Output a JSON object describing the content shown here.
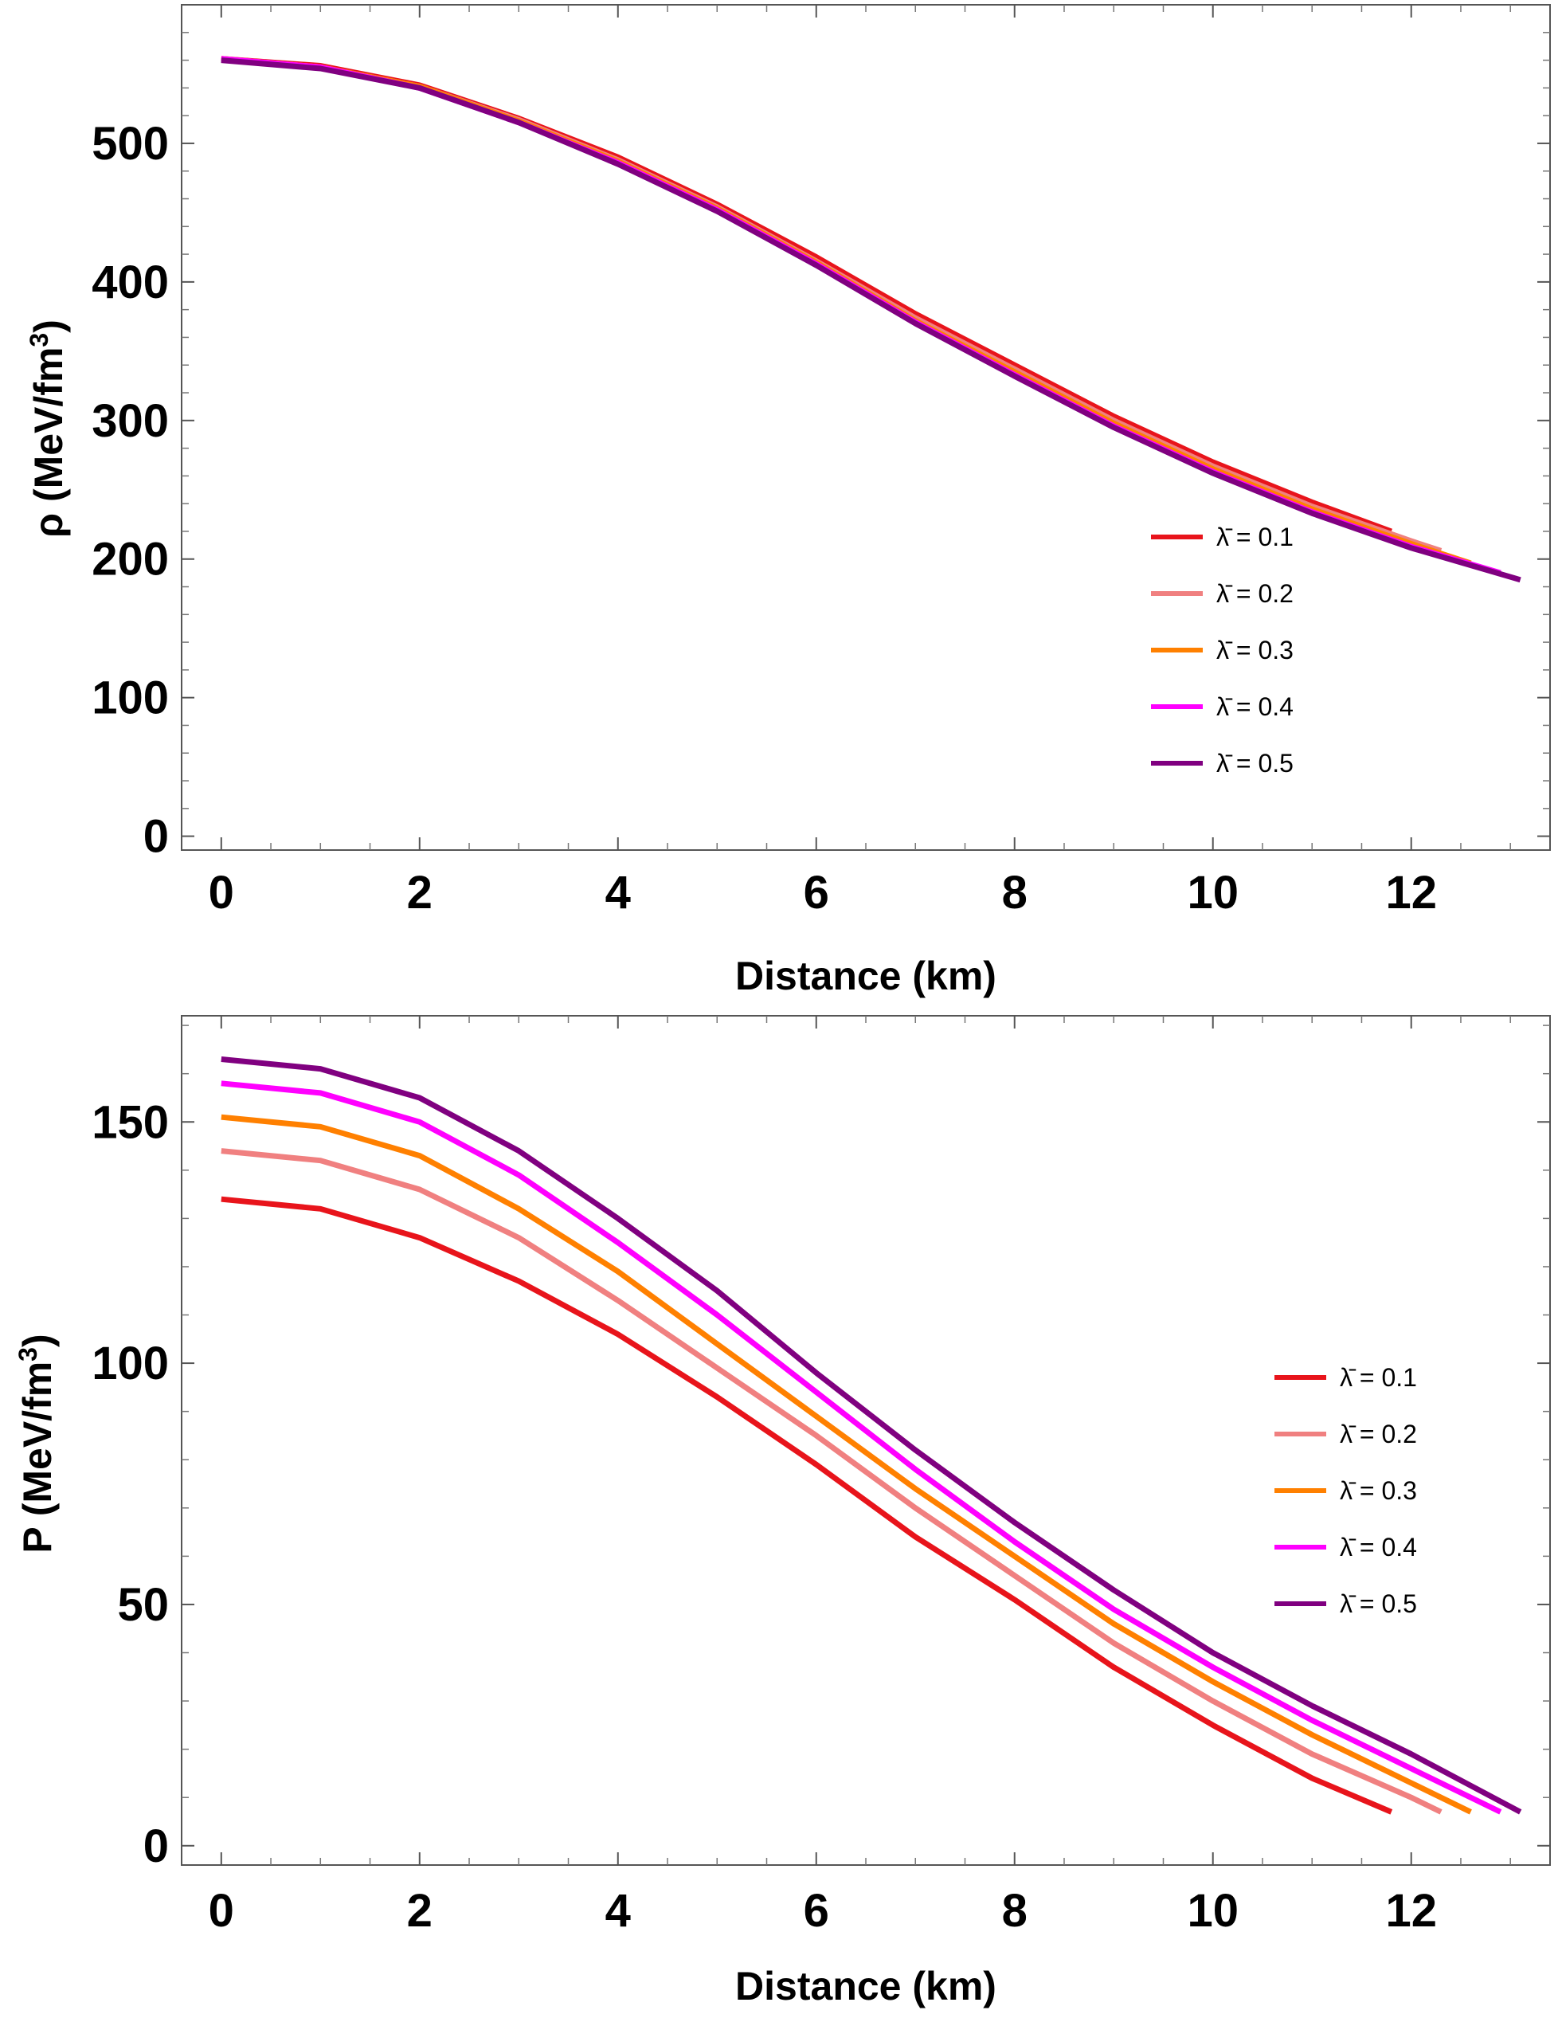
{
  "chart_data": [
    {
      "type": "line",
      "id": "density",
      "xlabel": "Distance (km)",
      "ylabel": "ρ (MeV/fm",
      "ylabel_sup": "3",
      "ylabel_tail": ")",
      "xlim": [
        -0.4,
        13.4
      ],
      "ylim": [
        -10,
        600
      ],
      "xticks": [
        0,
        2,
        4,
        6,
        8,
        10,
        12
      ],
      "yticks": [
        0,
        100,
        200,
        300,
        400,
        500
      ],
      "legend_position": "right",
      "series": [
        {
          "name": "λ̄ = 0.1",
          "color": "#e8141b",
          "x": [
            0,
            1,
            2,
            3,
            4,
            5,
            6,
            7,
            8,
            9,
            10,
            11,
            11.8
          ],
          "y": [
            561,
            556,
            542,
            518,
            490,
            456,
            418,
            377,
            340,
            303,
            270,
            241,
            220
          ]
        },
        {
          "name": "λ̄ = 0.2",
          "color": "#f08080",
          "x": [
            0,
            1,
            2,
            3,
            4,
            5,
            6,
            7,
            8,
            9,
            10,
            11,
            12,
            12.3
          ],
          "y": [
            561,
            555,
            541,
            517,
            488,
            454,
            415,
            374,
            337,
            300,
            267,
            238,
            213,
            206
          ]
        },
        {
          "name": "λ̄ = 0.3",
          "color": "#ff8000",
          "x": [
            0,
            1,
            2,
            3,
            4,
            5,
            6,
            7,
            8,
            9,
            10,
            11,
            12,
            12.6
          ],
          "y": [
            561,
            555,
            541,
            516,
            487,
            453,
            414,
            372,
            335,
            298,
            265,
            236,
            211,
            197
          ]
        },
        {
          "name": "λ̄ = 0.4",
          "color": "#ff00ff",
          "x": [
            0,
            1,
            2,
            3,
            4,
            5,
            6,
            7,
            8,
            9,
            10,
            11,
            12,
            12.9
          ],
          "y": [
            561,
            555,
            540,
            515,
            486,
            452,
            413,
            371,
            333,
            296,
            263,
            234,
            209,
            190
          ]
        },
        {
          "name": "λ̄ = 0.5",
          "color": "#800080",
          "x": [
            0,
            1,
            2,
            3,
            4,
            5,
            6,
            7,
            8,
            9,
            10,
            11,
            12,
            13.1
          ],
          "y": [
            560,
            554,
            540,
            515,
            485,
            451,
            412,
            370,
            332,
            295,
            262,
            233,
            208,
            185
          ]
        }
      ]
    },
    {
      "type": "line",
      "id": "pressure",
      "xlabel": "Distance (km)",
      "ylabel": "P (MeV/fm",
      "ylabel_sup": "3",
      "ylabel_tail": ")",
      "xlim": [
        -0.4,
        13.4
      ],
      "ylim": [
        -4,
        172
      ],
      "xticks": [
        0,
        2,
        4,
        6,
        8,
        10,
        12
      ],
      "yticks": [
        0,
        50,
        100,
        150
      ],
      "legend_position": "right",
      "series": [
        {
          "name": "λ̄ = 0.1",
          "color": "#e8141b",
          "x": [
            0,
            1,
            2,
            3,
            4,
            5,
            6,
            7,
            8,
            9,
            10,
            11,
            11.8
          ],
          "y": [
            134,
            132,
            126,
            117,
            106,
            93,
            79,
            64,
            51,
            37,
            25,
            14,
            7
          ]
        },
        {
          "name": "λ̄ = 0.2",
          "color": "#f08080",
          "x": [
            0,
            1,
            2,
            3,
            4,
            5,
            6,
            7,
            8,
            9,
            10,
            11,
            12,
            12.3
          ],
          "y": [
            144,
            142,
            136,
            126,
            113,
            99,
            85,
            70,
            56,
            42,
            30,
            19,
            10,
            7
          ]
        },
        {
          "name": "λ̄ = 0.3",
          "color": "#ff8000",
          "x": [
            0,
            1,
            2,
            3,
            4,
            5,
            6,
            7,
            8,
            9,
            10,
            11,
            12,
            12.6
          ],
          "y": [
            151,
            149,
            143,
            132,
            119,
            104,
            89,
            74,
            60,
            46,
            34,
            23,
            13,
            7
          ]
        },
        {
          "name": "λ̄ = 0.4",
          "color": "#ff00ff",
          "x": [
            0,
            1,
            2,
            3,
            4,
            5,
            6,
            7,
            8,
            9,
            10,
            11,
            12,
            12.9
          ],
          "y": [
            158,
            156,
            150,
            139,
            125,
            110,
            94,
            78,
            63,
            49,
            37,
            26,
            16,
            7
          ]
        },
        {
          "name": "λ̄ = 0.5",
          "color": "#800080",
          "x": [
            0,
            1,
            2,
            3,
            4,
            5,
            6,
            7,
            8,
            9,
            10,
            11,
            12,
            13.1
          ],
          "y": [
            163,
            161,
            155,
            144,
            130,
            115,
            98,
            82,
            67,
            53,
            40,
            29,
            19,
            7
          ]
        }
      ]
    }
  ]
}
